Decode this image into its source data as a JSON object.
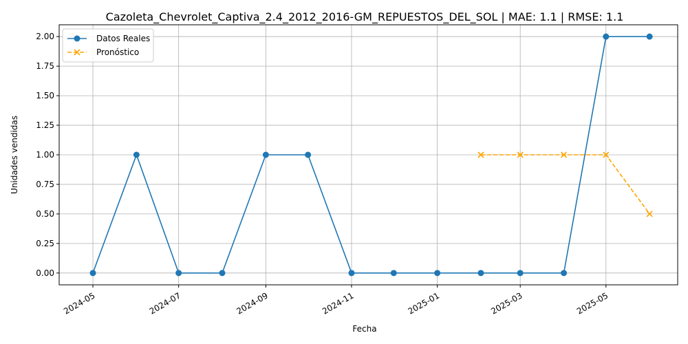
{
  "chart_data": {
    "type": "line",
    "title": "Cazoleta_Chevrolet_Captiva_2.4_2012_2016-GM_REPUESTOS_DEL_SOL | MAE: 1.1 | RMSE: 1.1",
    "xlabel": "Fecha",
    "ylabel": "Unidades vendidas",
    "x_ticks": [
      "2024-05",
      "2024-07",
      "2024-09",
      "2024-11",
      "2025-01",
      "2025-03",
      "2025-05"
    ],
    "y_ticks": [
      "0.00",
      "0.25",
      "0.50",
      "0.75",
      "1.00",
      "1.25",
      "1.50",
      "1.75",
      "2.00"
    ],
    "ylim": [
      -0.1,
      2.1
    ],
    "xlim": [
      "2024-04-07",
      "2025-06-21"
    ],
    "grid": true,
    "legend_position": "upper-left",
    "series": [
      {
        "name": "Datos Reales",
        "color": "#1f77b4",
        "style": "solid",
        "marker": "circle",
        "x": [
          "2024-05-01",
          "2024-06-01",
          "2024-07-01",
          "2024-08-01",
          "2024-09-01",
          "2024-10-01",
          "2024-11-01",
          "2024-12-01",
          "2025-01-01",
          "2025-02-01",
          "2025-03-01",
          "2025-04-01",
          "2025-05-01",
          "2025-06-01"
        ],
        "values": [
          0,
          1,
          0,
          0,
          1,
          1,
          0,
          0,
          0,
          0,
          0,
          0,
          2,
          2
        ]
      },
      {
        "name": "Pronóstico",
        "color": "#ffa500",
        "style": "dashed",
        "marker": "x",
        "x": [
          "2025-02-01",
          "2025-03-01",
          "2025-04-01",
          "2025-05-01",
          "2025-06-01"
        ],
        "values": [
          1,
          1,
          1,
          1,
          0.5
        ]
      }
    ]
  }
}
